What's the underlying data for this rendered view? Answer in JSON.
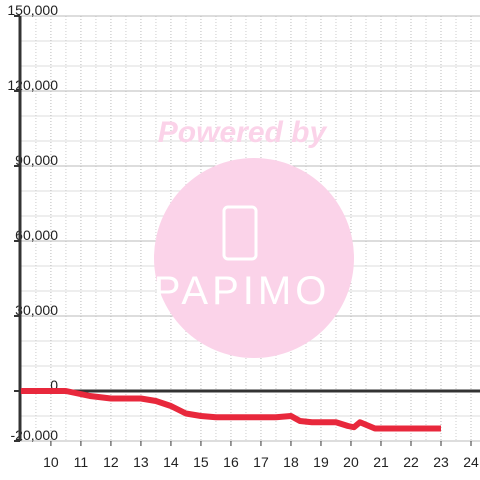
{
  "chart_data": {
    "type": "line",
    "watermark": [
      "Powered by",
      "PAPIMO"
    ],
    "x": [
      9.0,
      10.5,
      10.7,
      11.3,
      12,
      13,
      13.5,
      14,
      14.5,
      15,
      15.5,
      16.5,
      17.5,
      18,
      18.3,
      18.7,
      19.5,
      19.9,
      20.1,
      20.3,
      20.6,
      20.8,
      21.5,
      23
    ],
    "series": [
      {
        "color": "#e8283c",
        "values": [
          0,
          0,
          -500,
          -2000,
          -3000,
          -3000,
          -4000,
          -6000,
          -9000,
          -10000,
          -10500,
          -10500,
          -10500,
          -10000,
          -12000,
          -12500,
          -12500,
          -14000,
          -14500,
          -12500,
          -14000,
          -15000,
          -15000,
          -15000
        ]
      }
    ],
    "xlim": [
      8.97,
      24.3
    ],
    "xticks": [
      10,
      11,
      12,
      13,
      14,
      15,
      16,
      17,
      18,
      19,
      20,
      21,
      22,
      23,
      24
    ],
    "ylim": [
      -20000,
      150000
    ],
    "yticks": [
      {
        "value": -20000,
        "label": "-20,000"
      },
      0,
      {
        "value": 30000,
        "label": "30,000"
      },
      {
        "value": 60000,
        "label": "60,000"
      },
      {
        "value": 90000,
        "label": "90,000"
      },
      {
        "value": 120000,
        "label": "120,000"
      },
      {
        "value": 150000,
        "label": "150,000"
      }
    ],
    "grid": true
  }
}
